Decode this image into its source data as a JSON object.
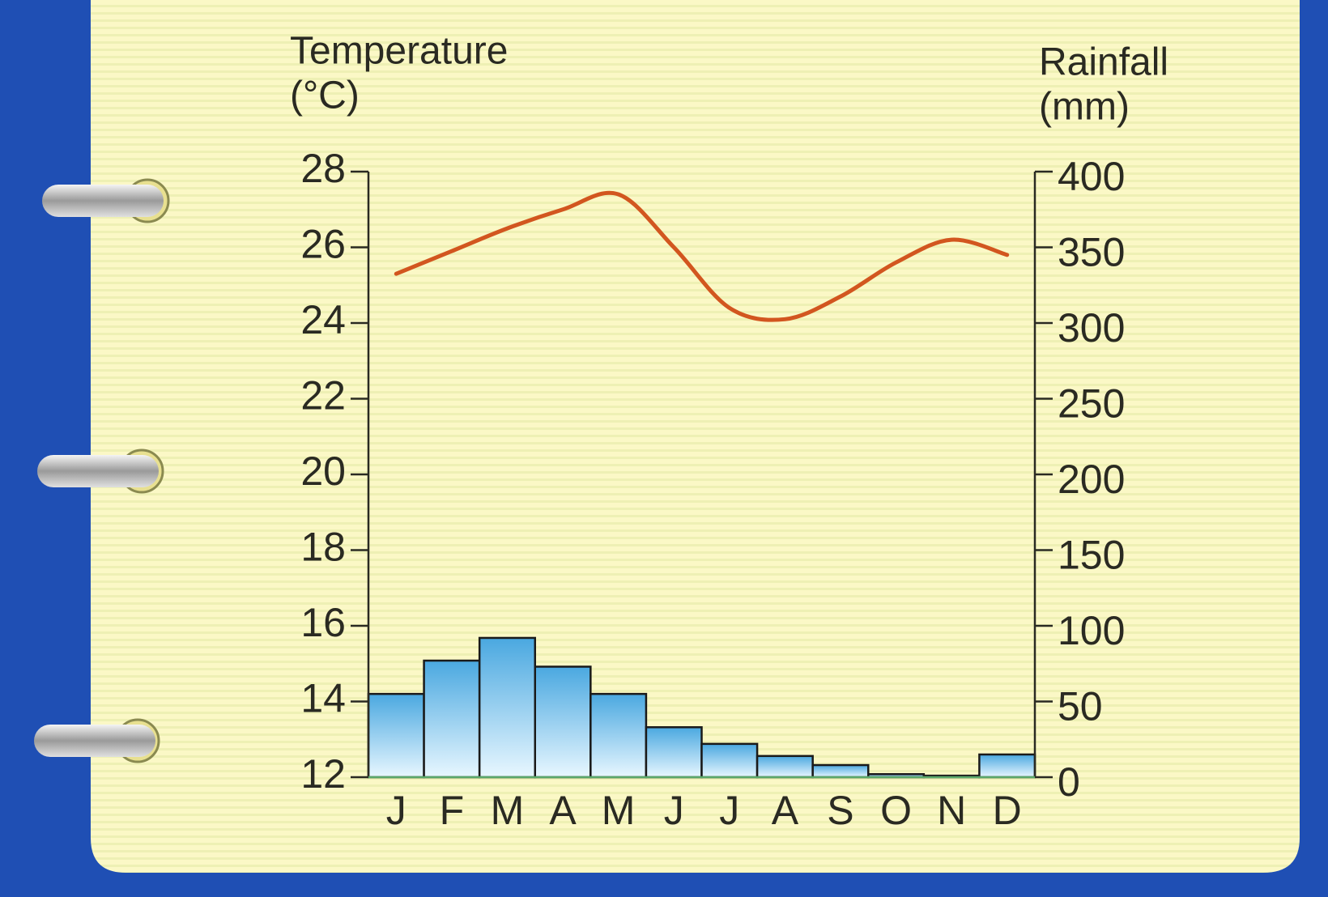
{
  "chart_data": {
    "type": "combo",
    "ylabel": [
      "Temperature",
      "(°C)"
    ],
    "y2label": [
      "Rainfall",
      "(mm)"
    ],
    "categories": [
      "J",
      "F",
      "M",
      "A",
      "M",
      "J",
      "J",
      "A",
      "S",
      "O",
      "N",
      "D"
    ],
    "series": [
      {
        "type": "line",
        "color": "#d2561f",
        "values": [
          25.3,
          25.9,
          26.5,
          27.0,
          27.4,
          26.0,
          24.4,
          24.1,
          24.7,
          25.6,
          26.2,
          25.8
        ]
      },
      {
        "type": "bar",
        "axis": "y2",
        "color": "#4aa8e0",
        "values": [
          55,
          77,
          92,
          73,
          55,
          33,
          22,
          14,
          8,
          2,
          1,
          15
        ]
      }
    ],
    "ylim": [
      12,
      28
    ],
    "yticks": [
      12,
      14,
      16,
      18,
      20,
      22,
      24,
      26,
      28
    ],
    "y2lim": [
      0,
      400
    ],
    "y2ticks": [
      0,
      50,
      100,
      150,
      200,
      250,
      300,
      350,
      400
    ]
  }
}
